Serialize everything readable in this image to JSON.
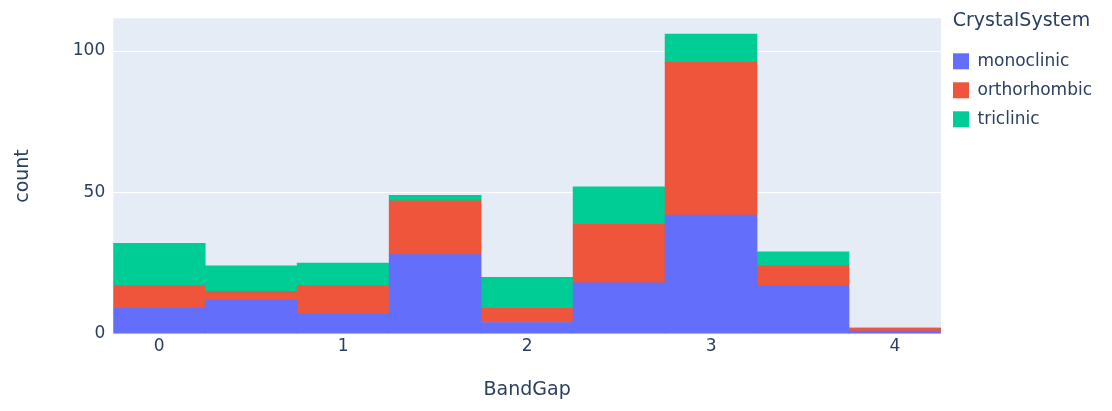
{
  "chart_data": {
    "type": "bar",
    "xlabel": "BandGap",
    "ylabel": "count",
    "legend_title": "CrystalSystem",
    "x": [
      0,
      0.5,
      1,
      1.5,
      2,
      2.5,
      3,
      3.5,
      4
    ],
    "series": [
      {
        "name": "monoclinic",
        "color": "#636efa",
        "values": [
          9,
          12,
          7,
          28,
          4,
          18,
          42,
          17,
          1
        ]
      },
      {
        "name": "orthorhombic",
        "color": "#ef553b",
        "values": [
          8,
          3,
          10,
          19,
          5,
          21,
          54,
          7,
          1
        ]
      },
      {
        "name": "triclinic",
        "color": "#00cc96",
        "values": [
          15,
          9,
          8,
          2,
          11,
          13,
          10,
          5,
          0
        ]
      }
    ],
    "stacked": true,
    "xlim": [
      -0.25,
      4.25
    ],
    "xticks": [
      0,
      1,
      2,
      3,
      4
    ],
    "ylim": [
      0,
      111.6
    ],
    "yticks": [
      0,
      50,
      100
    ],
    "grid": "y",
    "legend": "top right"
  }
}
